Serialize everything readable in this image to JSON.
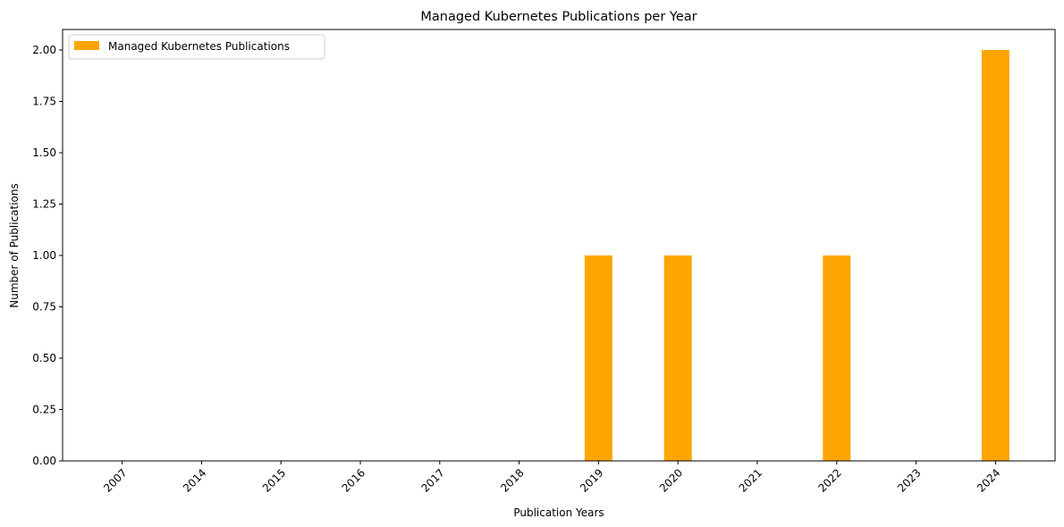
{
  "chart_data": {
    "type": "bar",
    "title": "Managed Kubernetes Publications per Year",
    "xlabel": "Publication Years",
    "ylabel": "Number of Publications",
    "categories": [
      "2007",
      "2014",
      "2015",
      "2016",
      "2017",
      "2018",
      "2019",
      "2020",
      "2021",
      "2022",
      "2023",
      "2024"
    ],
    "series": [
      {
        "name": "Managed Kubernetes Publications",
        "color": "#ffa500",
        "values": [
          0,
          0,
          0,
          0,
          0,
          0,
          1,
          1,
          0,
          1,
          0,
          2
        ]
      }
    ],
    "ylim": [
      0,
      2.1
    ],
    "yticks": [
      "0.00",
      "0.25",
      "0.50",
      "0.75",
      "1.00",
      "1.25",
      "1.50",
      "1.75",
      "2.00"
    ],
    "grid": false,
    "legend_position": "top-left"
  }
}
